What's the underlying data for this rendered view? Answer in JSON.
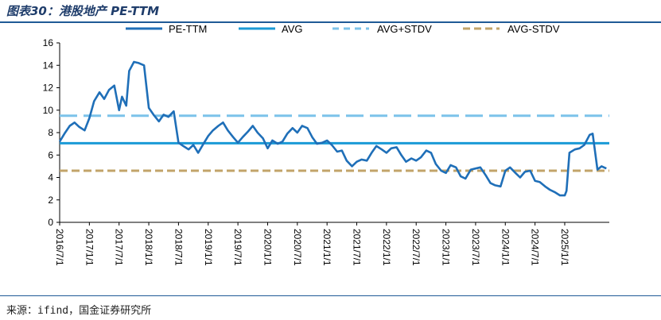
{
  "header": {
    "title": "图表30：港股地产 PE-TTM"
  },
  "footer": {
    "source": "来源：ifind，国金证券研究所"
  },
  "colors": {
    "pe": "#1f6fb8",
    "avg": "#1a9ad6",
    "avg_plus": "#7cc3ea",
    "avg_minus": "#c2a46a",
    "rule": "#1f5a96"
  },
  "chart_data": {
    "type": "line",
    "title": "港股地产 PE-TTM",
    "xlabel": "",
    "ylabel": "",
    "ylim": [
      0,
      16
    ],
    "yticks": [
      0,
      2,
      4,
      6,
      8,
      10,
      12,
      14,
      16
    ],
    "xticks": [
      "2016/7/1",
      "2017/1/1",
      "2017/7/1",
      "2018/1/1",
      "2018/7/1",
      "2019/1/1",
      "2019/7/1",
      "2020/1/1",
      "2020/7/1",
      "2021/1/1",
      "2021/7/1",
      "2022/1/1",
      "2022/7/1",
      "2023/1/1",
      "2023/7/1",
      "2024/1/1",
      "2024/7/1",
      "2025/1/1"
    ],
    "x_range": [
      2016.5,
      2025.75
    ],
    "legend": [
      "PE-TTM",
      "AVG",
      "AVG+STDV",
      "AVG-STDV"
    ],
    "series": [
      {
        "name": "PE-TTM",
        "style": "solid",
        "x": [
          2016.5,
          2016.58,
          2016.67,
          2016.75,
          2016.83,
          2016.92,
          2017.0,
          2017.08,
          2017.17,
          2017.25,
          2017.33,
          2017.42,
          2017.5,
          2017.55,
          2017.62,
          2017.67,
          2017.75,
          2017.83,
          2017.92,
          2018.0,
          2018.08,
          2018.17,
          2018.25,
          2018.33,
          2018.42,
          2018.5,
          2018.58,
          2018.67,
          2018.75,
          2018.83,
          2018.92,
          2019.0,
          2019.08,
          2019.17,
          2019.25,
          2019.33,
          2019.42,
          2019.5,
          2019.58,
          2019.67,
          2019.75,
          2019.83,
          2019.92,
          2020.0,
          2020.08,
          2020.17,
          2020.25,
          2020.33,
          2020.42,
          2020.5,
          2020.58,
          2020.67,
          2020.75,
          2020.83,
          2020.92,
          2021.0,
          2021.08,
          2021.17,
          2021.25,
          2021.33,
          2021.42,
          2021.5,
          2021.58,
          2021.67,
          2021.75,
          2021.83,
          2021.92,
          2022.0,
          2022.08,
          2022.17,
          2022.25,
          2022.33,
          2022.42,
          2022.5,
          2022.58,
          2022.67,
          2022.75,
          2022.83,
          2022.92,
          2023.0,
          2023.08,
          2023.17,
          2023.25,
          2023.33,
          2023.42,
          2023.5,
          2023.58,
          2023.67,
          2023.75,
          2023.83,
          2023.92,
          2024.0,
          2024.08,
          2024.17,
          2024.25,
          2024.33,
          2024.42,
          2024.5,
          2024.58,
          2024.67,
          2024.75,
          2024.83,
          2024.92,
          2025.0,
          2025.03,
          2025.08,
          2025.17,
          2025.25,
          2025.33,
          2025.42,
          2025.47,
          2025.55,
          2025.62,
          2025.7
        ],
        "values": [
          7.2,
          7.9,
          8.6,
          8.9,
          8.5,
          8.2,
          9.3,
          10.8,
          11.6,
          11.0,
          11.8,
          12.2,
          10.0,
          11.2,
          10.4,
          13.5,
          14.3,
          14.2,
          14.0,
          10.2,
          9.6,
          9.0,
          9.6,
          9.4,
          9.9,
          7.1,
          6.8,
          6.5,
          6.9,
          6.2,
          7.0,
          7.7,
          8.2,
          8.6,
          8.9,
          8.2,
          7.6,
          7.1,
          7.6,
          8.1,
          8.6,
          8.0,
          7.5,
          6.6,
          7.3,
          7.0,
          7.2,
          7.9,
          8.4,
          8.0,
          8.6,
          8.4,
          7.6,
          7.0,
          7.1,
          7.3,
          6.9,
          6.3,
          6.4,
          5.5,
          5.0,
          5.4,
          5.6,
          5.5,
          6.2,
          6.8,
          6.5,
          6.2,
          6.6,
          6.7,
          6.0,
          5.4,
          5.7,
          5.5,
          5.8,
          6.4,
          6.2,
          5.2,
          4.6,
          4.4,
          5.1,
          4.9,
          4.1,
          3.9,
          4.7,
          4.8,
          4.9,
          4.2,
          3.5,
          3.3,
          3.2,
          4.6,
          4.9,
          4.4,
          4.0,
          4.5,
          4.6,
          3.7,
          3.6,
          3.2,
          2.9,
          2.7,
          2.4,
          2.4,
          2.8,
          6.2,
          6.5,
          6.6,
          6.9,
          7.8,
          7.9,
          4.7,
          5.0,
          4.8
        ]
      },
      {
        "name": "AVG",
        "style": "solid",
        "x": [
          2016.5,
          2025.75
        ],
        "values": [
          7.05,
          7.05
        ]
      },
      {
        "name": "AVG+STDV",
        "style": "dashed",
        "x": [
          2016.5,
          2025.75
        ],
        "values": [
          9.5,
          9.5
        ]
      },
      {
        "name": "AVG-STDV",
        "style": "dashed",
        "x": [
          2016.5,
          2025.75
        ],
        "values": [
          4.6,
          4.6
        ]
      }
    ]
  }
}
